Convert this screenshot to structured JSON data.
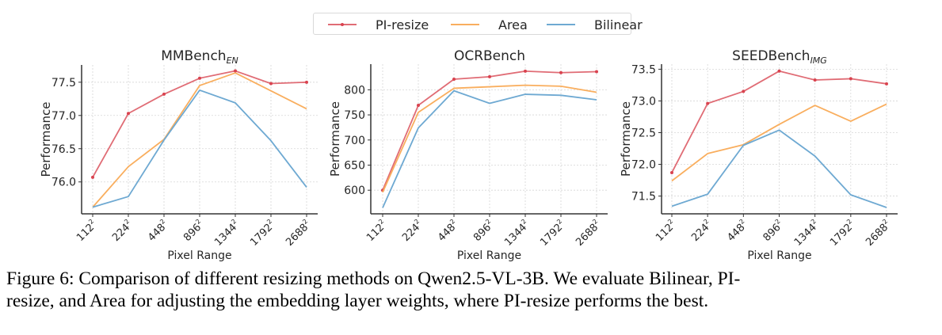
{
  "legend": {
    "items": [
      {
        "label": "PI-resize",
        "color": "#e06c75",
        "marker": true
      },
      {
        "label": "Area",
        "color": "#f9ae5e",
        "marker": false
      },
      {
        "label": "Bilinear",
        "color": "#6ea9d2",
        "marker": false
      }
    ]
  },
  "caption": {
    "line1": "Figure 6: Comparison of different resizing methods on Qwen2.5-VL-3B. We evaluate Bilinear, PI-",
    "line2": "resize, and Area for adjusting the embedding layer weights, where PI-resize performs the best."
  },
  "chart_data": [
    {
      "type": "line",
      "title": "MMBench",
      "title_subscript": "EN",
      "xlabel": "Pixel Range",
      "ylabel": "Performance",
      "categories": [
        "112",
        "224",
        "448",
        "896",
        "1344",
        "1792",
        "2688"
      ],
      "category_superscript": "2",
      "ylim": [
        75.52,
        77.76
      ],
      "yticks": [
        76.0,
        76.5,
        77.0,
        77.5
      ],
      "ytick_labels": [
        "76.0",
        "76.5",
        "77.0",
        "77.5"
      ],
      "grid": true,
      "series": [
        {
          "name": "PI-resize",
          "values": [
            76.07,
            77.03,
            77.32,
            77.56,
            77.67,
            77.48,
            77.5
          ]
        },
        {
          "name": "Area",
          "values": [
            75.62,
            76.23,
            76.64,
            77.45,
            77.64,
            77.37,
            77.1
          ]
        },
        {
          "name": "Bilinear",
          "values": [
            75.62,
            75.78,
            76.63,
            77.38,
            77.19,
            76.62,
            75.92
          ]
        }
      ]
    },
    {
      "type": "line",
      "title": "OCRBench",
      "title_subscript": "",
      "xlabel": "Pixel Range",
      "ylabel": "Performance",
      "categories": [
        "112",
        "224",
        "448",
        "896",
        "1344",
        "1792",
        "2688"
      ],
      "category_superscript": "2",
      "ylim": [
        553,
        851
      ],
      "yticks": [
        600,
        650,
        700,
        750,
        800
      ],
      "ytick_labels": [
        "600",
        "650",
        "700",
        "750",
        "800"
      ],
      "grid": true,
      "series": [
        {
          "name": "PI-resize",
          "values": [
            600,
            769,
            821,
            826,
            837,
            834,
            836
          ]
        },
        {
          "name": "Area",
          "values": [
            596,
            755,
            803,
            806,
            809,
            807,
            795
          ]
        },
        {
          "name": "Bilinear",
          "values": [
            565,
            724,
            798,
            773,
            791,
            789,
            780
          ]
        }
      ]
    },
    {
      "type": "line",
      "title": "SEEDBench",
      "title_subscript": "IMG",
      "xlabel": "Pixel Range",
      "ylabel": "Performance",
      "categories": [
        "112",
        "224",
        "448",
        "896",
        "1344",
        "1792",
        "2688"
      ],
      "category_superscript": "2",
      "ylim": [
        71.22,
        73.58
      ],
      "yticks": [
        71.5,
        72.0,
        72.5,
        73.0,
        73.5
      ],
      "ytick_labels": [
        "71.5",
        "72.0",
        "72.5",
        "73.0",
        "73.5"
      ],
      "grid": true,
      "series": [
        {
          "name": "PI-resize",
          "values": [
            71.87,
            72.96,
            73.15,
            73.47,
            73.33,
            73.35,
            73.27
          ]
        },
        {
          "name": "Area",
          "values": [
            71.74,
            72.17,
            72.31,
            72.63,
            72.93,
            72.68,
            72.95
          ]
        },
        {
          "name": "Bilinear",
          "values": [
            71.34,
            71.53,
            72.3,
            72.54,
            72.13,
            71.52,
            71.32
          ]
        }
      ]
    }
  ]
}
